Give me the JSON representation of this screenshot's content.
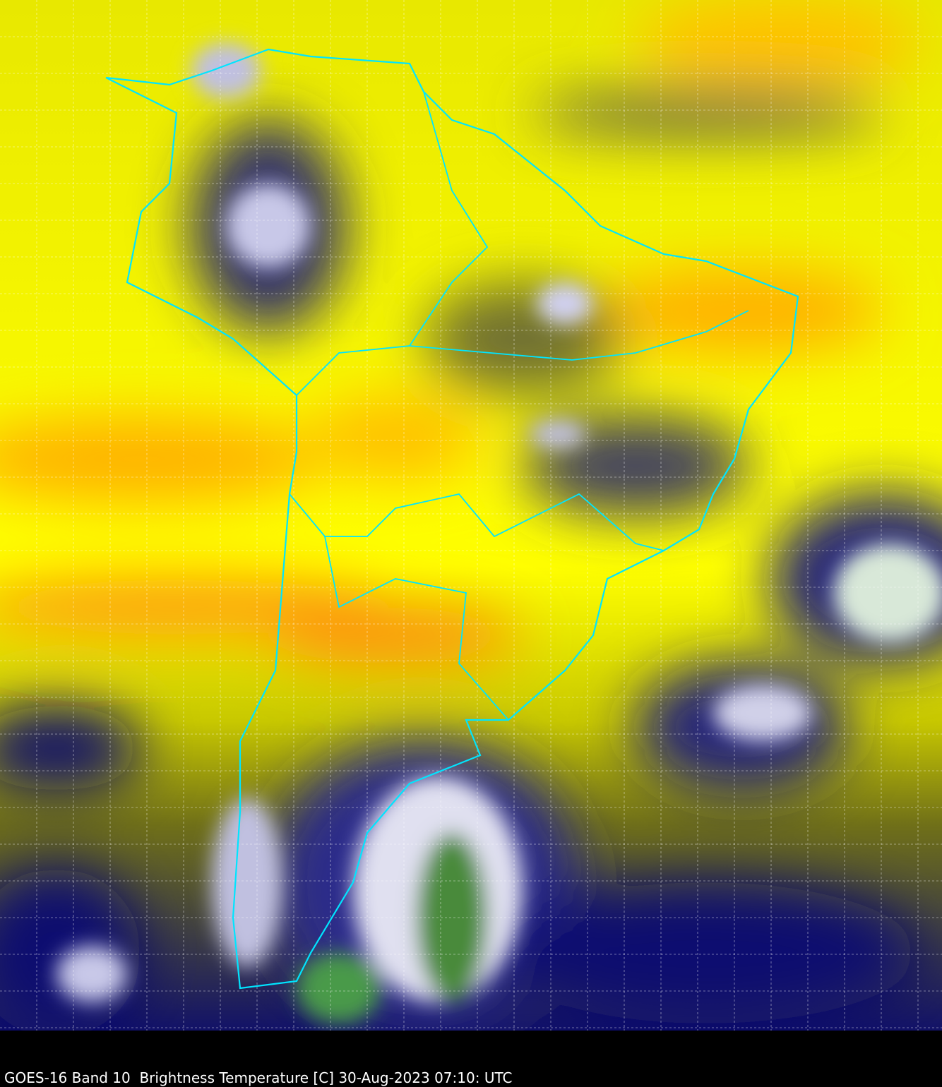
{
  "caption": "GOES-16 Band 10  Brightness Temperature [C] 30-Aug-2023 07:10: UTC",
  "map": {
    "product": "satellite water-vapor brightness temperature",
    "colors": {
      "warm_orange": "#ff9a10",
      "yellow": "#ffff00",
      "olive": "#8a8a10",
      "navy": "#0a0a70",
      "cloud_white": "#e0e0f0",
      "cold_green": "#3a8a3a",
      "border_cyan": "#00e5ff",
      "grid": "#ffffff",
      "background": "#000000"
    },
    "grid": "dashed graticule on"
  }
}
